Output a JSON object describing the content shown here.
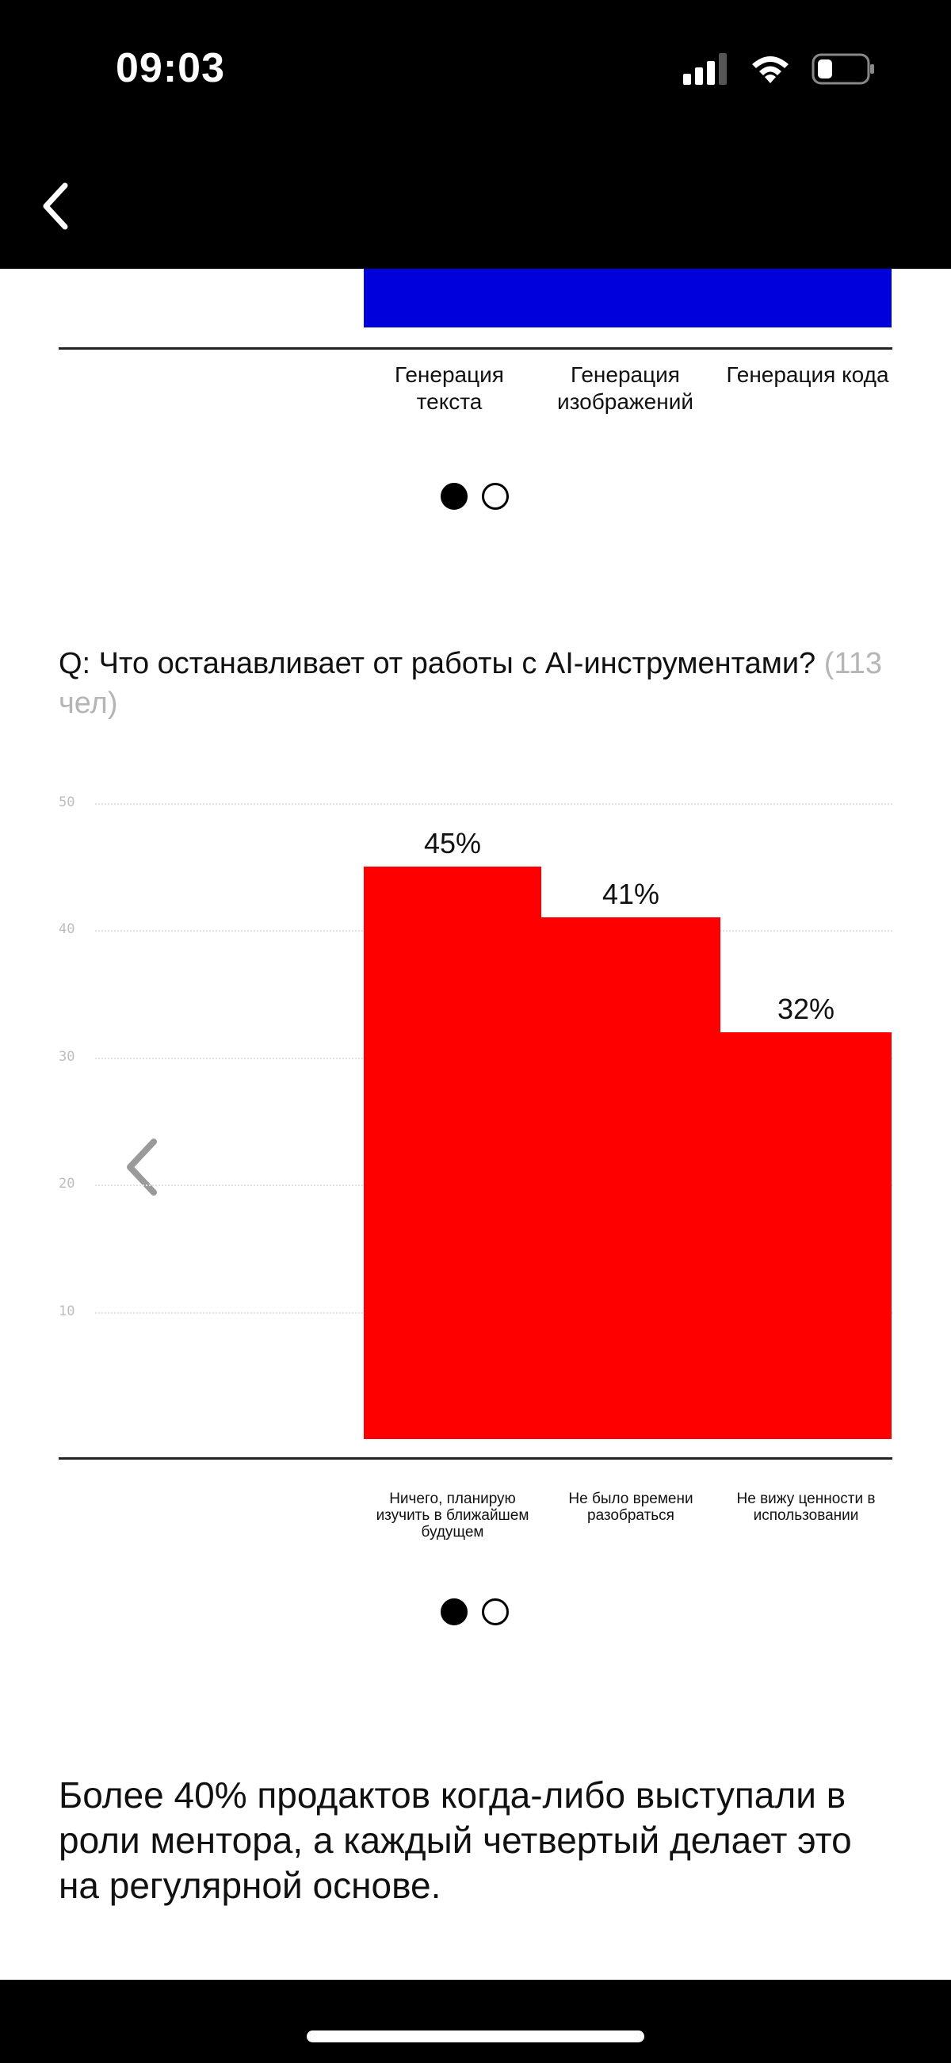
{
  "status_bar": {
    "time": "09:03",
    "icons": [
      "cellular-signal-icon",
      "wifi-icon",
      "battery-icon"
    ]
  },
  "nav": {
    "back_icon": "chevron-left-icon"
  },
  "chart1": {
    "categories": [
      "Генерация текста",
      "Генерация изображений",
      "Генерация кода"
    ],
    "bar_color": "#0000dd"
  },
  "pagination1": {
    "total": 2,
    "active": 0
  },
  "question": {
    "text": "Q: Что останавливает от работы с AI-инструментами?",
    "count": "(113 чел)"
  },
  "chart_data": {
    "type": "bar",
    "categories": [
      "Ничего, планирую изучить в ближайшем будущем",
      "Не было времени разобраться",
      "Не вижу ценности в использовании"
    ],
    "values": [
      45,
      41,
      32
    ],
    "value_labels": [
      "45%",
      "41%",
      "32%"
    ],
    "yticks": [
      "50",
      "40",
      "30",
      "20",
      "10"
    ],
    "ylim": [
      0,
      50
    ],
    "grid": true,
    "bar_color": "#ff0000"
  },
  "carousel": {
    "prev_icon": "chevron-left-icon",
    "next_icon": "chevron-right-icon"
  },
  "pagination2": {
    "total": 2,
    "active": 0
  },
  "statement": "Более 40% продактов когда-либо выступали в роли ментора, а каждый четвертый делает это на регулярной основе."
}
